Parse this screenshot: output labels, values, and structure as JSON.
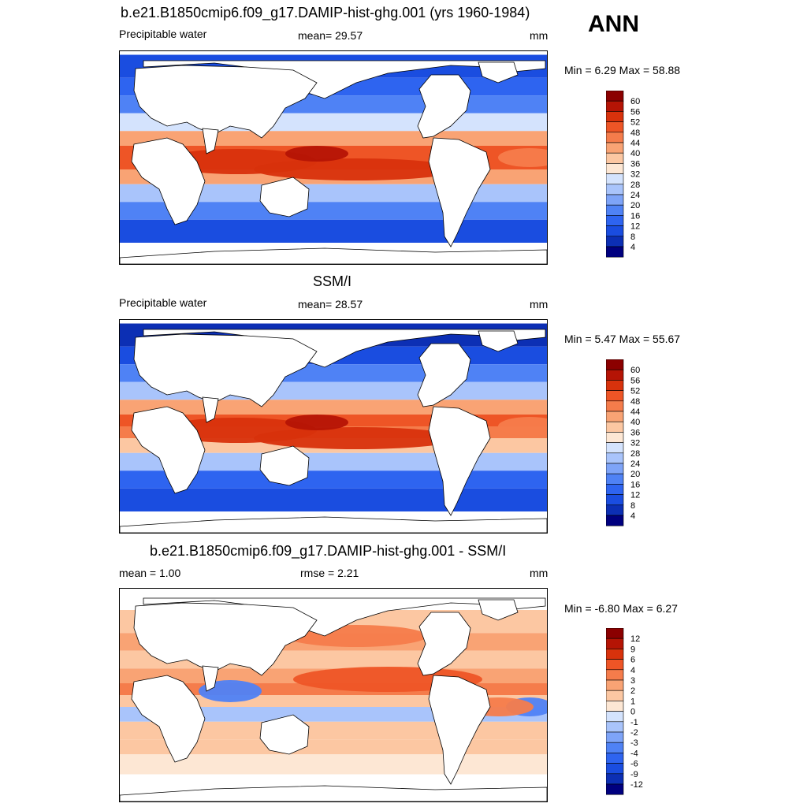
{
  "season": "ANN",
  "panels": [
    {
      "title": "b.e21.B1850cmip6.f09_g17.DAMIP-hist-ghg.001 (yrs 1960-1984)",
      "left_label": "Precipitable water",
      "center_label": "mean=  29.57",
      "units": "mm",
      "minmax": "Min =   6.29 Max =  58.88"
    },
    {
      "title": "SSM/I",
      "left_label": "Precipitable water",
      "center_label": "mean=  28.57",
      "units": "mm",
      "minmax": "Min =   5.47 Max =  55.67"
    },
    {
      "title": "b.e21.B1850cmip6.f09_g17.DAMIP-hist-ghg.001 - SSM/I",
      "left_label": "mean =   1.00",
      "center_label": "rmse =   2.21",
      "units": "mm",
      "minmax": "Min =  -6.80 Max =   6.27"
    }
  ],
  "chart_data": [
    {
      "type": "heatmap",
      "title": "b.e21.B1850cmip6.f09_g17.DAMIP-hist-ghg.001 (yrs 1960-1984)",
      "variable": "Precipitable water",
      "units": "mm",
      "mean": 29.57,
      "min": 6.29,
      "max": 58.88,
      "levels": [
        4,
        8,
        12,
        16,
        20,
        24,
        28,
        32,
        36,
        40,
        44,
        48,
        52,
        56,
        60
      ],
      "colors": [
        "#00007f",
        "#0c2fb4",
        "#1a4de0",
        "#2e64f0",
        "#4f82f5",
        "#7ea4f8",
        "#a9c4fb",
        "#d4e3fd",
        "#fde7d4",
        "#fcc7a2",
        "#f9a374",
        "#f57c4b",
        "#ee5526",
        "#d8320c",
        "#b51405",
        "#8b0000"
      ],
      "zonal_profile": [
        {
          "lat": 75,
          "value": 8
        },
        {
          "lat": 60,
          "value": 12
        },
        {
          "lat": 45,
          "value": 18
        },
        {
          "lat": 30,
          "value": 28
        },
        {
          "lat": 15,
          "value": 42
        },
        {
          "lat": 5,
          "value": 50
        },
        {
          "lat": -5,
          "value": 48
        },
        {
          "lat": -15,
          "value": 40
        },
        {
          "lat": -30,
          "value": 26
        },
        {
          "lat": -45,
          "value": 16
        },
        {
          "lat": -60,
          "value": 9
        }
      ]
    },
    {
      "type": "heatmap",
      "title": "SSM/I",
      "variable": "Precipitable water",
      "units": "mm",
      "mean": 28.57,
      "min": 5.47,
      "max": 55.67,
      "levels": [
        4,
        8,
        12,
        16,
        20,
        24,
        28,
        32,
        36,
        40,
        44,
        48,
        52,
        56,
        60
      ],
      "colors": [
        "#00007f",
        "#0c2fb4",
        "#1a4de0",
        "#2e64f0",
        "#4f82f5",
        "#7ea4f8",
        "#a9c4fb",
        "#d4e3fd",
        "#fde7d4",
        "#fcc7a2",
        "#f9a374",
        "#f57c4b",
        "#ee5526",
        "#d8320c",
        "#b51405",
        "#8b0000"
      ],
      "zonal_profile": [
        {
          "lat": 75,
          "value": 7
        },
        {
          "lat": 60,
          "value": 11
        },
        {
          "lat": 45,
          "value": 17
        },
        {
          "lat": 30,
          "value": 26
        },
        {
          "lat": 15,
          "value": 40
        },
        {
          "lat": 5,
          "value": 48
        },
        {
          "lat": -5,
          "value": 46
        },
        {
          "lat": -15,
          "value": 38
        },
        {
          "lat": -30,
          "value": 25
        },
        {
          "lat": -45,
          "value": 15
        },
        {
          "lat": -60,
          "value": 8
        }
      ]
    },
    {
      "type": "heatmap",
      "title": "b.e21.B1850cmip6.f09_g17.DAMIP-hist-ghg.001 - SSM/I",
      "variable": "difference",
      "units": "mm",
      "mean": 1.0,
      "rmse": 2.21,
      "min": -6.8,
      "max": 6.27,
      "levels": [
        -12,
        -9,
        -6,
        -4,
        -3,
        -2,
        -1,
        0,
        1,
        2,
        3,
        4,
        6,
        9,
        12
      ],
      "colors": [
        "#00007f",
        "#0c2fb4",
        "#1a4de0",
        "#2e64f0",
        "#4f82f5",
        "#7ea4f8",
        "#a9c4fb",
        "#d4e3fd",
        "#fde7d4",
        "#fcc7a2",
        "#f9a374",
        "#f57c4b",
        "#ee5526",
        "#d8320c",
        "#b51405",
        "#8b0000"
      ],
      "zonal_profile": [
        {
          "lat": 60,
          "value": 1
        },
        {
          "lat": 45,
          "value": 2
        },
        {
          "lat": 30,
          "value": 1.5
        },
        {
          "lat": 15,
          "value": 2
        },
        {
          "lat": 5,
          "value": 3
        },
        {
          "lat": -5,
          "value": 1
        },
        {
          "lat": -15,
          "value": -1.5
        },
        {
          "lat": -30,
          "value": 1
        },
        {
          "lat": -45,
          "value": 1.5
        },
        {
          "lat": -55,
          "value": 0.5
        }
      ]
    }
  ]
}
